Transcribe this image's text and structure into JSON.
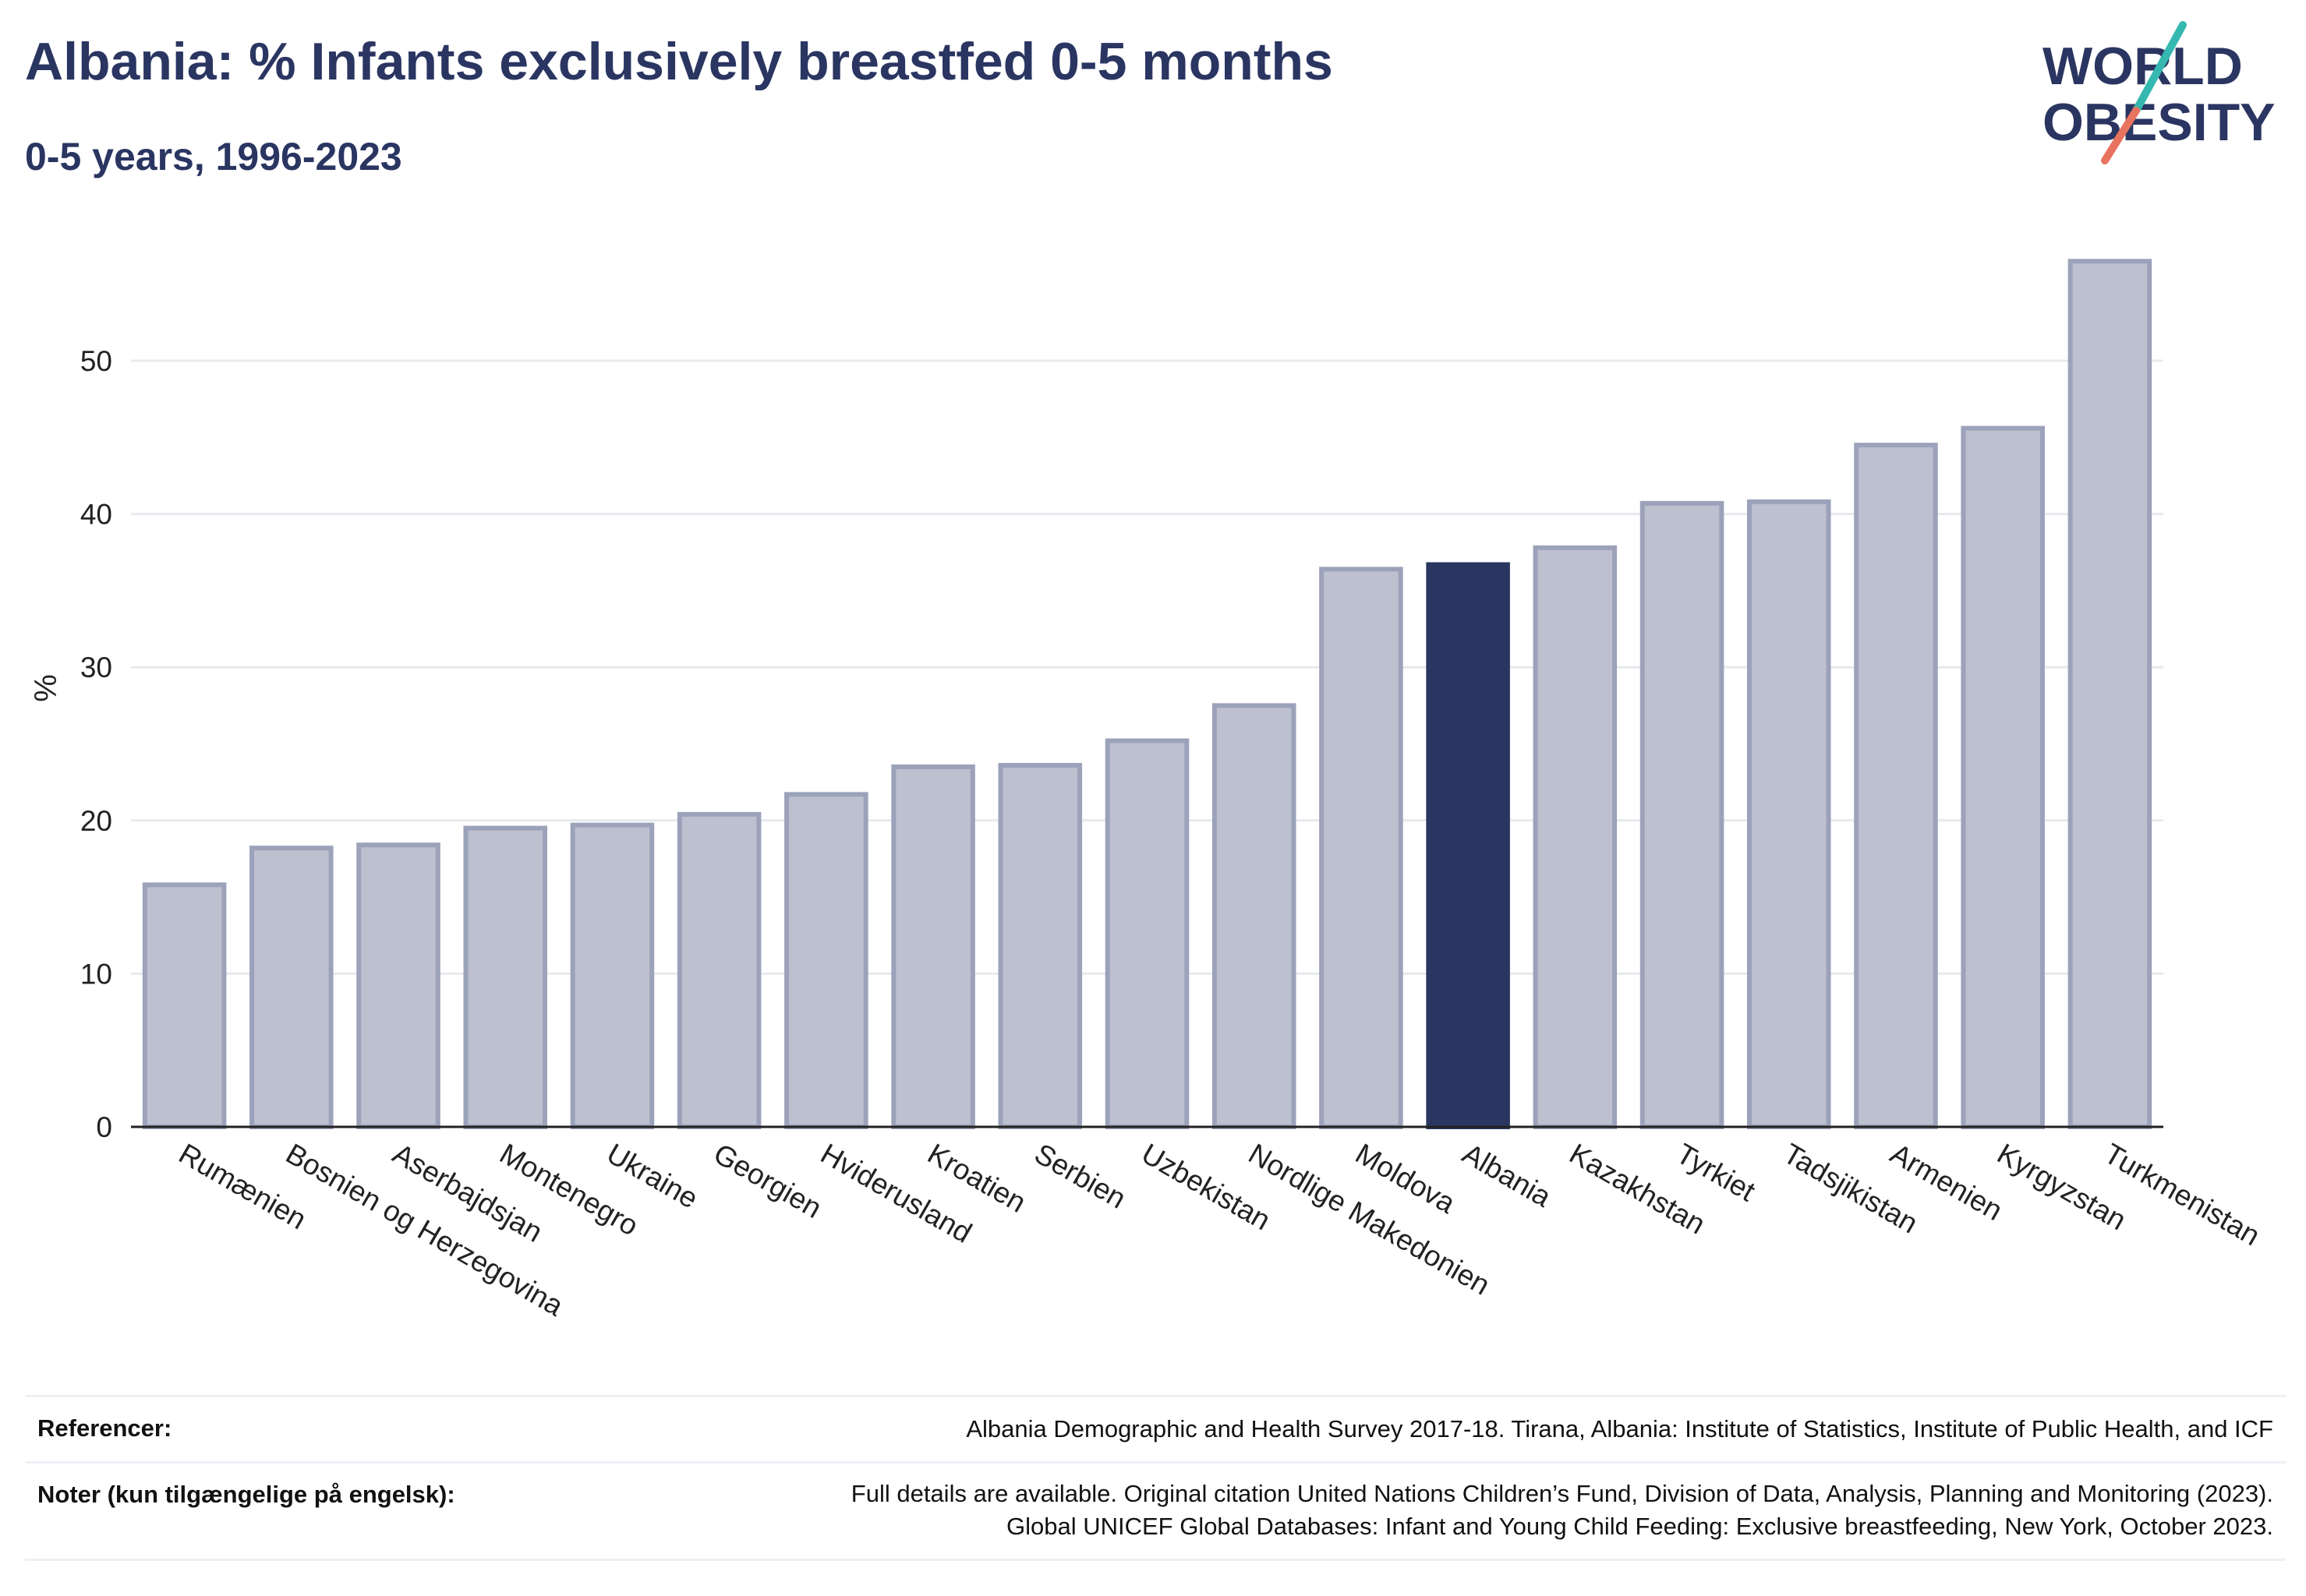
{
  "title": "Albania: % Infants exclusively breastfed 0-5 months",
  "subtitle": "0-5 years, 1996-2023",
  "logo": {
    "line1": "WORLD",
    "line2": "OBESITY"
  },
  "colors": {
    "highlight": "#2a3561",
    "bar_fill": "#bcc0cf",
    "bar_stroke": "#9ba2ba",
    "grid": "#e8e9ee",
    "logo_teal": "#35b8b0",
    "logo_coral": "#e8735f"
  },
  "chart_data": {
    "type": "bar",
    "ylabel": "%",
    "xlabel": "",
    "ylim": [
      0,
      58
    ],
    "yticks": [
      0,
      10,
      20,
      30,
      40,
      50
    ],
    "grid": true,
    "highlight_category": "Albania",
    "categories": [
      "Rumænien",
      "Bosnien og Herzegovina",
      "Aserbajdsjan",
      "Montenegro",
      "Ukraine",
      "Georgien",
      "Hviderusland",
      "Kroatien",
      "Serbien",
      "Uzbekistan",
      "Nordlige Makedonien",
      "Moldova",
      "Albania",
      "Kazakhstan",
      "Tyrkiet",
      "Tadsjikistan",
      "Armenien",
      "Kyrgyzstan",
      "Turkmenistan"
    ],
    "values": [
      15.8,
      18.2,
      18.4,
      19.5,
      19.7,
      20.4,
      21.7,
      23.5,
      23.6,
      25.2,
      27.5,
      36.4,
      36.7,
      37.8,
      40.7,
      40.8,
      44.5,
      45.6,
      56.5
    ]
  },
  "notes": {
    "references_label": "Referencer:",
    "references_text": "Albania Demographic and Health Survey 2017-18. Tirana, Albania: Institute of Statistics, Institute of Public Health, and ICF",
    "notes_label": "Noter (kun tilgængelige på engelsk):",
    "notes_line1": "Full details are available. Original citation United Nations Children’s Fund, Division of Data, Analysis, Planning and Monitoring (2023).",
    "notes_line2": "Global UNICEF Global Databases: Infant and Young Child Feeding: Exclusive breastfeeding, New York, October 2023."
  }
}
